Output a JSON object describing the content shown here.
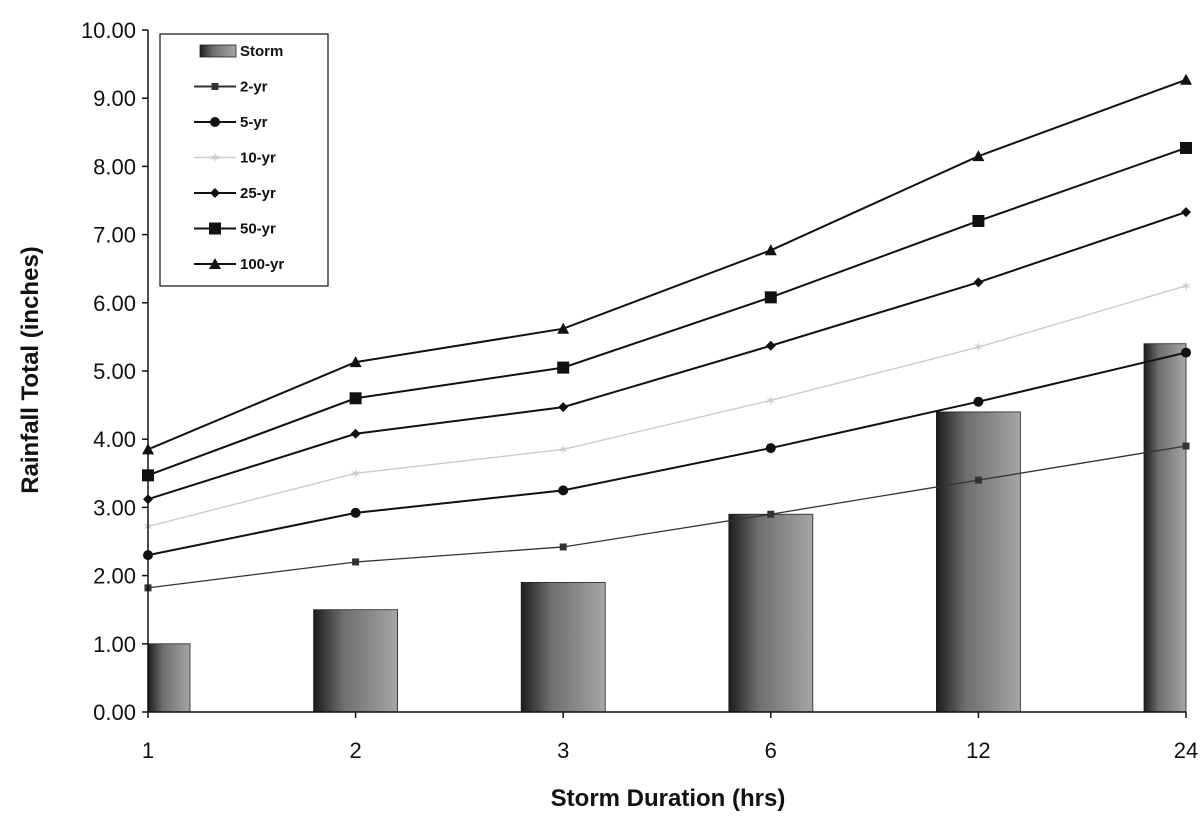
{
  "chart_data": {
    "type": "bar",
    "title": "",
    "xlabel": "Storm Duration (hrs)",
    "ylabel": "Rainfall Total (inches)",
    "categories": [
      "1",
      "2",
      "3",
      "6",
      "12",
      "24"
    ],
    "ylim": [
      0,
      10
    ],
    "yticks": [
      "0.00",
      "1.00",
      "2.00",
      "3.00",
      "4.00",
      "5.00",
      "6.00",
      "7.00",
      "8.00",
      "9.00",
      "10.00"
    ],
    "grid": false,
    "legend": "top-left",
    "bars": {
      "name": "Storm",
      "values": [
        1.0,
        1.5,
        1.9,
        2.9,
        4.4,
        5.4
      ]
    },
    "series": [
      {
        "name": "2-yr",
        "marker": "small-square",
        "color": "#333333",
        "values": [
          1.82,
          2.2,
          2.42,
          2.9,
          3.4,
          3.9
        ]
      },
      {
        "name": "5-yr",
        "marker": "circle",
        "color": "#111111",
        "values": [
          2.3,
          2.92,
          3.25,
          3.87,
          4.55,
          5.27
        ]
      },
      {
        "name": "10-yr",
        "marker": "faint-star",
        "color": "#cccccc",
        "values": [
          2.72,
          3.5,
          3.85,
          4.57,
          5.35,
          6.25
        ]
      },
      {
        "name": "25-yr",
        "marker": "diamond",
        "color": "#111111",
        "values": [
          3.12,
          4.08,
          4.47,
          5.37,
          6.3,
          7.33
        ]
      },
      {
        "name": "50-yr",
        "marker": "square",
        "color": "#111111",
        "values": [
          3.47,
          4.6,
          5.05,
          6.08,
          7.2,
          8.27
        ]
      },
      {
        "name": "100-yr",
        "marker": "triangle",
        "color": "#111111",
        "values": [
          3.85,
          5.13,
          5.62,
          6.77,
          8.15,
          9.27
        ]
      }
    ]
  }
}
